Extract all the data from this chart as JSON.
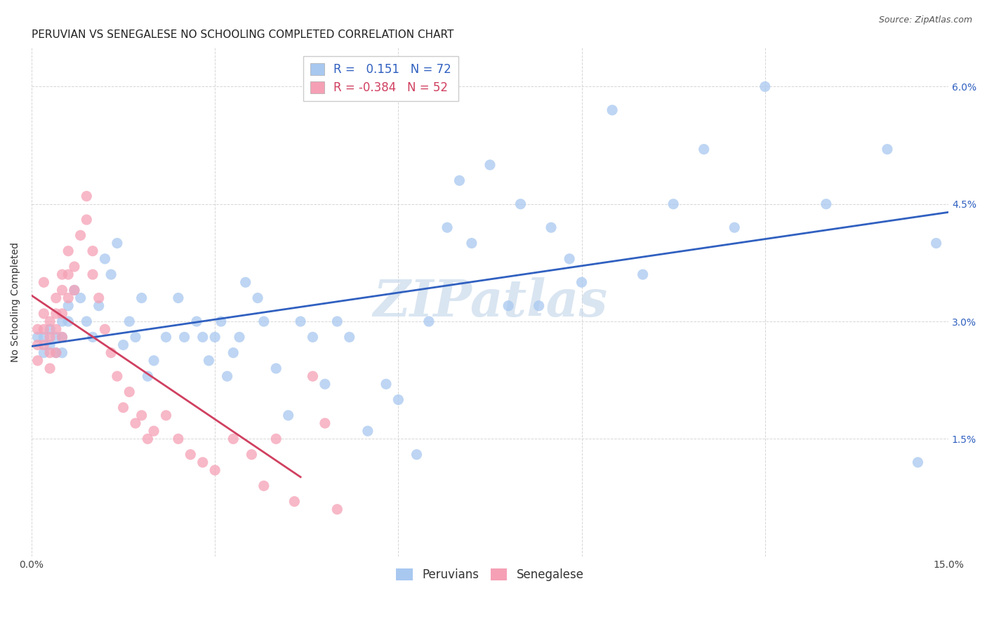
{
  "title": "PERUVIAN VS SENEGALESE NO SCHOOLING COMPLETED CORRELATION CHART",
  "source": "Source: ZipAtlas.com",
  "ylabel": "No Schooling Completed",
  "watermark": "ZIPatlas",
  "legend_peruvian_r": "0.151",
  "legend_peruvian_n": "72",
  "legend_senegalese_r": "-0.384",
  "legend_senegalese_n": "52",
  "xlim": [
    0.0,
    0.15
  ],
  "ylim": [
    0.0,
    0.065
  ],
  "xticks": [
    0.0,
    0.03,
    0.06,
    0.09,
    0.12,
    0.15
  ],
  "yticks": [
    0.0,
    0.015,
    0.03,
    0.045,
    0.06
  ],
  "blue_color": "#a8c8f0",
  "pink_color": "#f5a0b5",
  "blue_line_color": "#3060c0",
  "pink_line_color": "#d04060",
  "grid_color": "#cccccc",
  "background_color": "#ffffff",
  "title_fontsize": 11,
  "axis_label_fontsize": 10,
  "tick_fontsize": 10,
  "legend_fontsize": 12,
  "watermark_fontsize": 52,
  "watermark_color": "#c0d4e8",
  "dot_size": 120,
  "peruvians_x": [
    0.001,
    0.002,
    0.002,
    0.003,
    0.003,
    0.004,
    0.004,
    0.005,
    0.005,
    0.005,
    0.006,
    0.006,
    0.007,
    0.008,
    0.009,
    0.01,
    0.011,
    0.012,
    0.013,
    0.014,
    0.015,
    0.016,
    0.017,
    0.018,
    0.019,
    0.02,
    0.022,
    0.024,
    0.025,
    0.027,
    0.028,
    0.029,
    0.03,
    0.031,
    0.032,
    0.033,
    0.034,
    0.035,
    0.037,
    0.038,
    0.04,
    0.042,
    0.044,
    0.046,
    0.048,
    0.05,
    0.052,
    0.055,
    0.058,
    0.06,
    0.063,
    0.065,
    0.068,
    0.07,
    0.072,
    0.075,
    0.078,
    0.08,
    0.083,
    0.085,
    0.088,
    0.09,
    0.095,
    0.1,
    0.105,
    0.11,
    0.115,
    0.12,
    0.13,
    0.14,
    0.145,
    0.148
  ],
  "peruvians_y": [
    0.028,
    0.028,
    0.026,
    0.029,
    0.027,
    0.028,
    0.026,
    0.03,
    0.028,
    0.026,
    0.032,
    0.03,
    0.034,
    0.033,
    0.03,
    0.028,
    0.032,
    0.038,
    0.036,
    0.04,
    0.027,
    0.03,
    0.028,
    0.033,
    0.023,
    0.025,
    0.028,
    0.033,
    0.028,
    0.03,
    0.028,
    0.025,
    0.028,
    0.03,
    0.023,
    0.026,
    0.028,
    0.035,
    0.033,
    0.03,
    0.024,
    0.018,
    0.03,
    0.028,
    0.022,
    0.03,
    0.028,
    0.016,
    0.022,
    0.02,
    0.013,
    0.03,
    0.042,
    0.048,
    0.04,
    0.05,
    0.032,
    0.045,
    0.032,
    0.042,
    0.038,
    0.035,
    0.057,
    0.036,
    0.045,
    0.052,
    0.042,
    0.06,
    0.045,
    0.052,
    0.012,
    0.04
  ],
  "senegalese_x": [
    0.001,
    0.001,
    0.001,
    0.002,
    0.002,
    0.002,
    0.002,
    0.003,
    0.003,
    0.003,
    0.003,
    0.004,
    0.004,
    0.004,
    0.004,
    0.005,
    0.005,
    0.005,
    0.005,
    0.006,
    0.006,
    0.006,
    0.007,
    0.007,
    0.008,
    0.009,
    0.009,
    0.01,
    0.01,
    0.011,
    0.012,
    0.013,
    0.014,
    0.015,
    0.016,
    0.017,
    0.018,
    0.019,
    0.02,
    0.022,
    0.024,
    0.026,
    0.028,
    0.03,
    0.033,
    0.036,
    0.038,
    0.04,
    0.043,
    0.046,
    0.048,
    0.05
  ],
  "senegalese_y": [
    0.029,
    0.027,
    0.025,
    0.031,
    0.029,
    0.027,
    0.035,
    0.03,
    0.028,
    0.026,
    0.024,
    0.033,
    0.031,
    0.029,
    0.026,
    0.036,
    0.034,
    0.031,
    0.028,
    0.039,
    0.036,
    0.033,
    0.037,
    0.034,
    0.041,
    0.046,
    0.043,
    0.039,
    0.036,
    0.033,
    0.029,
    0.026,
    0.023,
    0.019,
    0.021,
    0.017,
    0.018,
    0.015,
    0.016,
    0.018,
    0.015,
    0.013,
    0.012,
    0.011,
    0.015,
    0.013,
    0.009,
    0.015,
    0.007,
    0.023,
    0.017,
    0.006
  ]
}
